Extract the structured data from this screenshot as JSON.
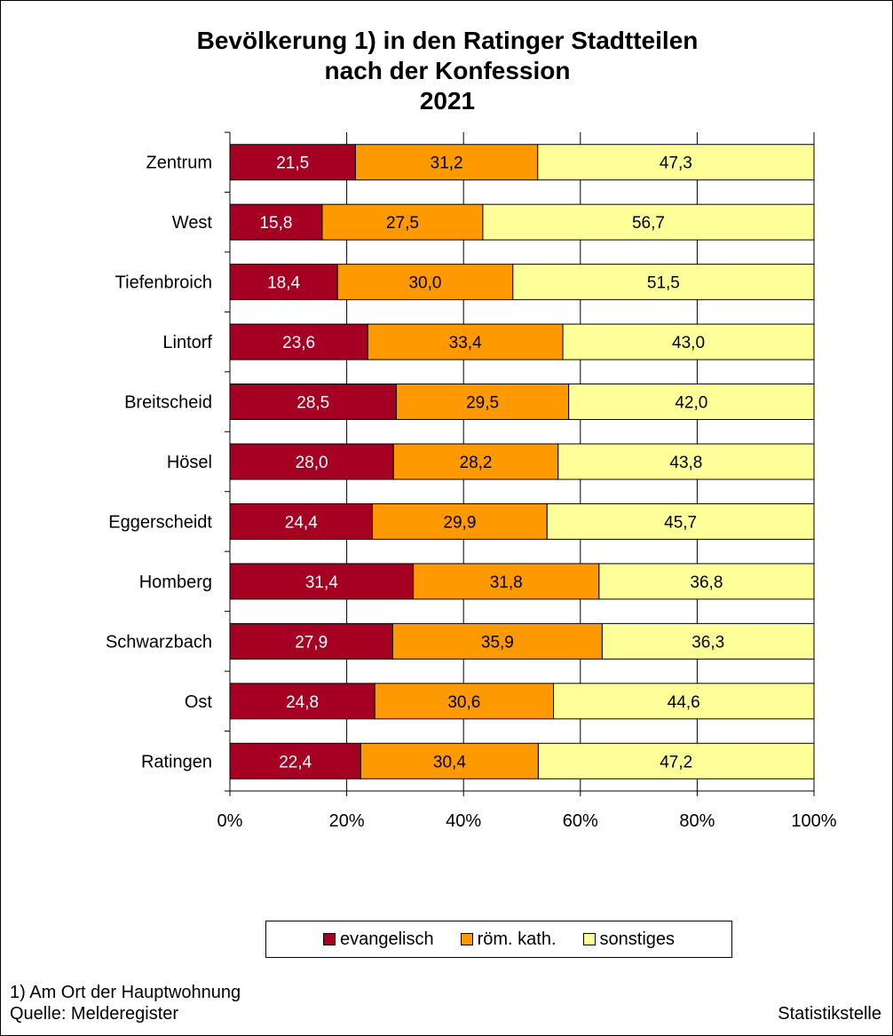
{
  "chart_data": {
    "type": "bar",
    "orientation": "horizontal",
    "stacked": "percent",
    "title_lines": [
      "Bevölkerung 1) in den Ratinger Stadtteilen",
      "nach der Konfession",
      "2021"
    ],
    "categories": [
      "Zentrum",
      "West",
      "Tiefenbroich",
      "Lintorf",
      "Breitscheid",
      "Hösel",
      "Eggerscheidt",
      "Homberg",
      "Schwarzbach",
      "Ost",
      "Ratingen"
    ],
    "series": [
      {
        "name": "evangelisch",
        "color": "#A50021",
        "label_color": "#ffffff",
        "values": [
          21.5,
          15.8,
          18.4,
          23.6,
          28.5,
          28.0,
          24.4,
          31.4,
          27.9,
          24.8,
          22.4
        ],
        "labels": [
          "21,5",
          "15,8",
          "18,4",
          "23,6",
          "28,5",
          "28,0",
          "24,4",
          "31,4",
          "27,9",
          "24,8",
          "22,4"
        ]
      },
      {
        "name": "röm. kath.",
        "color": "#FF9900",
        "label_color": "#000000",
        "values": [
          31.2,
          27.5,
          30.0,
          33.4,
          29.5,
          28.2,
          29.9,
          31.8,
          35.9,
          30.6,
          30.4
        ],
        "labels": [
          "31,2",
          "27,5",
          "30,0",
          "33,4",
          "29,5",
          "28,2",
          "29,9",
          "31,8",
          "35,9",
          "30,6",
          "30,4"
        ]
      },
      {
        "name": "sonstiges",
        "color": "#FFFF99",
        "label_color": "#000000",
        "values": [
          47.3,
          56.7,
          51.5,
          43.0,
          42.0,
          43.8,
          45.7,
          36.8,
          36.3,
          44.6,
          47.2
        ],
        "labels": [
          "47,3",
          "56,7",
          "51,5",
          "43,0",
          "42,0",
          "43,8",
          "45,7",
          "36,8",
          "36,3",
          "44,6",
          "47,2"
        ]
      }
    ],
    "xlim": [
      0,
      100
    ],
    "xticks": [
      0,
      20,
      40,
      60,
      80,
      100
    ],
    "xtick_labels": [
      "0%",
      "20%",
      "40%",
      "60%",
      "80%",
      "100%"
    ],
    "grid": "vertical",
    "legend_position": "bottom"
  },
  "footer": {
    "note": "1) Am Ort der Hauptwohnung",
    "source": "Quelle: Melderegister",
    "credit": "Statistikstelle"
  }
}
